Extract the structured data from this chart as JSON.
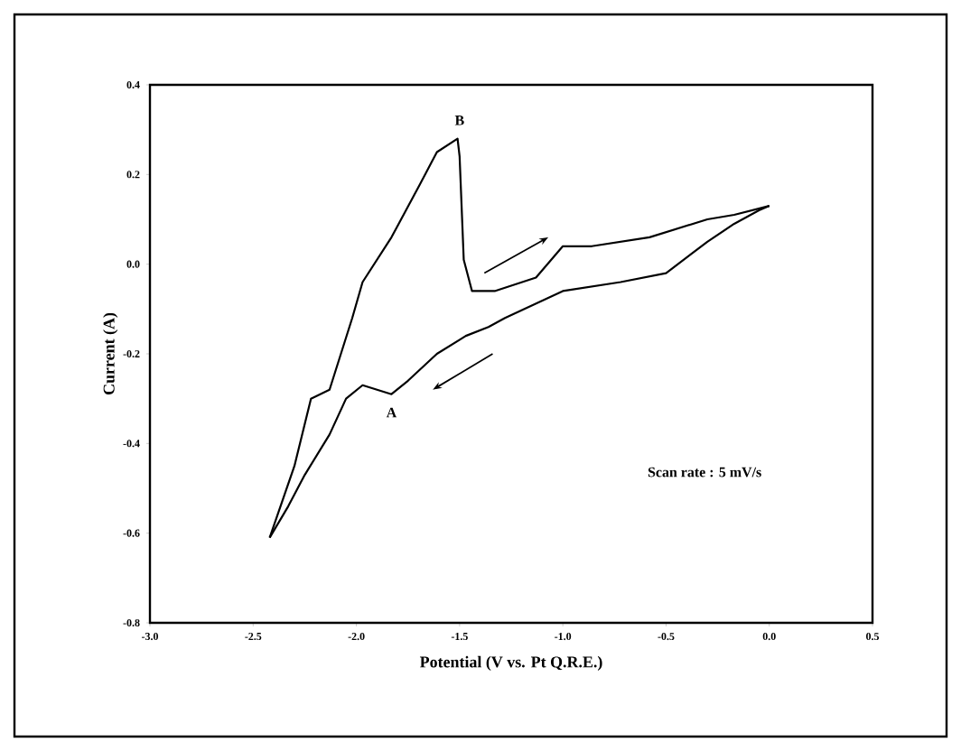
{
  "chart_data": {
    "type": "line",
    "xlabel": "Potential (V vs. Pt Q.R.E.)",
    "ylabel": "Current (A)",
    "series": [
      {
        "color": "#000000",
        "x": [
          0.0,
          -0.05,
          -0.17,
          -0.3,
          -0.5,
          -0.72,
          -1.0,
          -1.28,
          -1.36,
          -1.47,
          -1.61,
          -1.75,
          -1.83,
          -1.97,
          -2.05,
          -2.13,
          -2.25,
          -2.33,
          -2.42
        ],
        "values": [
          0.13,
          0.12,
          0.09,
          0.05,
          -0.02,
          -0.04,
          -0.06,
          -0.12,
          -0.14,
          -0.16,
          -0.2,
          -0.26,
          -0.29,
          -0.27,
          -0.3,
          -0.38,
          -0.47,
          -0.54,
          -0.61
        ]
      },
      {
        "color": "#000000",
        "x": [
          -2.42,
          -2.3,
          -2.22,
          -2.13,
          -2.02,
          -1.97,
          -1.83,
          -1.69,
          -1.61,
          -1.51,
          -1.5,
          -1.48,
          -1.44,
          -1.33,
          -1.13,
          -1.0,
          -0.86,
          -0.58,
          -0.3,
          -0.17,
          0.0
        ],
        "values": [
          -0.61,
          -0.45,
          -0.3,
          -0.28,
          -0.12,
          -0.04,
          0.06,
          0.18,
          0.25,
          0.28,
          0.24,
          0.01,
          -0.06,
          -0.06,
          -0.03,
          0.04,
          0.04,
          0.06,
          0.1,
          0.11,
          0.13
        ]
      }
    ],
    "xlim": [
      -3.0,
      0.5
    ],
    "ylim": [
      -0.8,
      0.4
    ],
    "xticks": [
      {
        "value": -3.0,
        "label": "-3.0"
      },
      {
        "value": -2.5,
        "label": "-2.5"
      },
      {
        "value": -2.0,
        "label": "-2.0"
      },
      {
        "value": -1.5,
        "label": "-1.5"
      },
      {
        "value": -1.0,
        "label": "-1.0"
      },
      {
        "value": -0.5,
        "label": "-0.5"
      },
      {
        "value": 0.0,
        "label": "0.0"
      },
      {
        "value": 0.5,
        "label": "0.5"
      }
    ],
    "yticks": [
      {
        "value": -0.8,
        "label": "-0.8"
      },
      {
        "value": -0.6,
        "label": "-0.6"
      },
      {
        "value": -0.4,
        "label": "-0.4"
      },
      {
        "value": -0.2,
        "label": "-0.2"
      },
      {
        "value": 0.0,
        "label": "0.0"
      },
      {
        "value": 0.2,
        "label": "0.2"
      },
      {
        "value": 0.4,
        "label": "0.4"
      }
    ],
    "annotations": [
      {
        "text": "B",
        "x": -1.5,
        "y": 0.28
      },
      {
        "text": "A",
        "x": -1.83,
        "y": -0.29
      },
      "Scan rate : 5 mV/s"
    ],
    "marker": "none",
    "line_style": "solid"
  }
}
